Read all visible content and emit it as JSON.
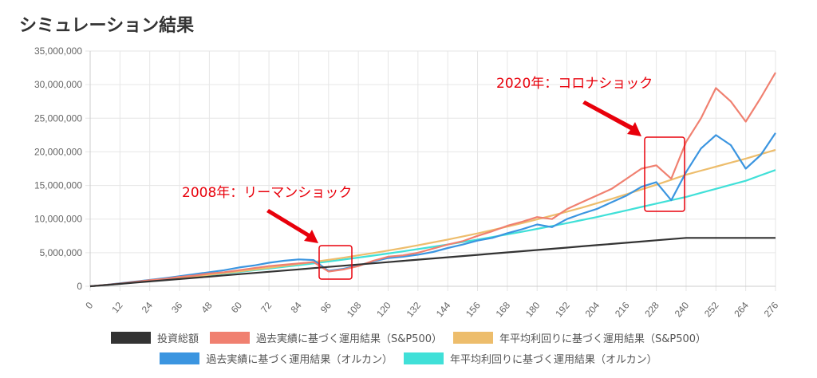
{
  "title": "シミュレーション結果",
  "chart_data": {
    "type": "line",
    "title": "シミュレーション結果",
    "xlabel": "",
    "ylabel": "",
    "x": [
      0,
      6,
      12,
      18,
      24,
      30,
      36,
      42,
      48,
      54,
      60,
      66,
      72,
      78,
      84,
      90,
      96,
      102,
      108,
      114,
      120,
      126,
      132,
      138,
      144,
      150,
      156,
      162,
      168,
      174,
      180,
      186,
      192,
      198,
      204,
      210,
      216,
      222,
      228,
      234,
      240,
      246,
      252,
      258,
      264,
      270,
      276
    ],
    "x_ticks": [
      "0",
      "12",
      "24",
      "36",
      "48",
      "60",
      "72",
      "84",
      "96",
      "108",
      "120",
      "132",
      "144",
      "156",
      "168",
      "180",
      "192",
      "204",
      "216",
      "228",
      "240",
      "252",
      "264",
      "276"
    ],
    "y_ticks": [
      "0",
      "5,000,000",
      "10,000,000",
      "15,000,000",
      "20,000,000",
      "25,000,000",
      "30,000,000",
      "35,000,000"
    ],
    "ylim": [
      0,
      35000000
    ],
    "value_unit": 1000000,
    "grid": true,
    "legend_position": "bottom",
    "series": [
      {
        "name": "投資総額",
        "color": "#333333",
        "values": [
          0,
          0.18,
          0.36,
          0.54,
          0.72,
          0.9,
          1.08,
          1.26,
          1.44,
          1.62,
          1.8,
          1.98,
          2.16,
          2.34,
          2.52,
          2.7,
          2.88,
          3.06,
          3.24,
          3.42,
          3.6,
          3.78,
          3.96,
          4.14,
          4.32,
          4.5,
          4.68,
          4.86,
          5.04,
          5.22,
          5.4,
          5.58,
          5.76,
          5.94,
          6.12,
          6.3,
          6.48,
          6.66,
          6.84,
          7.02,
          7.2,
          7.2,
          7.2,
          7.2,
          7.2,
          7.2,
          7.2
        ]
      },
      {
        "name": "過去実績に基づく運用結果（S&P500）",
        "color": "#f08070",
        "values": [
          0,
          0.2,
          0.4,
          0.65,
          0.9,
          1.1,
          1.4,
          1.6,
          1.9,
          2.1,
          2.4,
          2.7,
          3.0,
          3.2,
          3.4,
          3.6,
          2.2,
          2.5,
          3.0,
          3.8,
          4.4,
          4.6,
          5.0,
          5.6,
          6.2,
          6.7,
          7.5,
          8.2,
          9.0,
          9.6,
          10.3,
          10.0,
          11.5,
          12.5,
          13.5,
          14.5,
          16.0,
          17.5,
          18.0,
          16.0,
          21.5,
          25.0,
          29.5,
          27.5,
          24.5,
          28.0,
          31.8
        ]
      },
      {
        "name": "年平均利回りに基づく運用結果（S&P500）",
        "color": "#edbd6c",
        "values": [
          0,
          0.19,
          0.38,
          0.6,
          0.8,
          1.02,
          1.25,
          1.48,
          1.72,
          1.97,
          2.22,
          2.48,
          2.75,
          3.03,
          3.32,
          3.62,
          3.93,
          4.25,
          4.6,
          4.95,
          5.32,
          5.7,
          6.1,
          6.52,
          6.95,
          7.4,
          7.87,
          8.36,
          8.87,
          9.4,
          9.95,
          10.52,
          11.1,
          11.7,
          12.35,
          13.0,
          13.7,
          14.4,
          15.1,
          15.85,
          16.6,
          17.2,
          17.8,
          18.4,
          19.0,
          19.65,
          20.3
        ]
      },
      {
        "name": "過去実績に基づく運用結果（オルカン）",
        "color": "#3b95e0",
        "values": [
          0,
          0.2,
          0.45,
          0.7,
          0.95,
          1.2,
          1.5,
          1.8,
          2.1,
          2.4,
          2.8,
          3.1,
          3.5,
          3.8,
          4.0,
          3.9,
          2.3,
          2.6,
          3.1,
          3.7,
          4.2,
          4.4,
          4.7,
          5.1,
          5.7,
          6.2,
          6.8,
          7.2,
          7.9,
          8.5,
          9.2,
          8.8,
          10.0,
          10.8,
          11.5,
          12.5,
          13.5,
          14.8,
          15.5,
          12.8,
          17.0,
          20.5,
          22.5,
          21.0,
          17.5,
          19.5,
          22.8
        ]
      },
      {
        "name": "年平均利回りに基づく運用結果（オルカン）",
        "color": "#40e0d8",
        "values": [
          0,
          0.19,
          0.38,
          0.58,
          0.78,
          1.0,
          1.22,
          1.44,
          1.67,
          1.9,
          2.14,
          2.38,
          2.63,
          2.88,
          3.14,
          3.41,
          3.69,
          3.97,
          4.27,
          4.57,
          4.88,
          5.2,
          5.53,
          5.87,
          6.22,
          6.58,
          6.95,
          7.33,
          7.72,
          8.12,
          8.54,
          8.97,
          9.4,
          9.85,
          10.3,
          10.8,
          11.3,
          11.8,
          12.3,
          12.8,
          13.3,
          13.9,
          14.5,
          15.1,
          15.7,
          16.5,
          17.3
        ]
      }
    ],
    "annotations": [
      {
        "text": "2008年：リーマンショック",
        "color": "#e8000b"
      },
      {
        "text": "2020年：コロナショック",
        "color": "#e8000b"
      }
    ]
  }
}
